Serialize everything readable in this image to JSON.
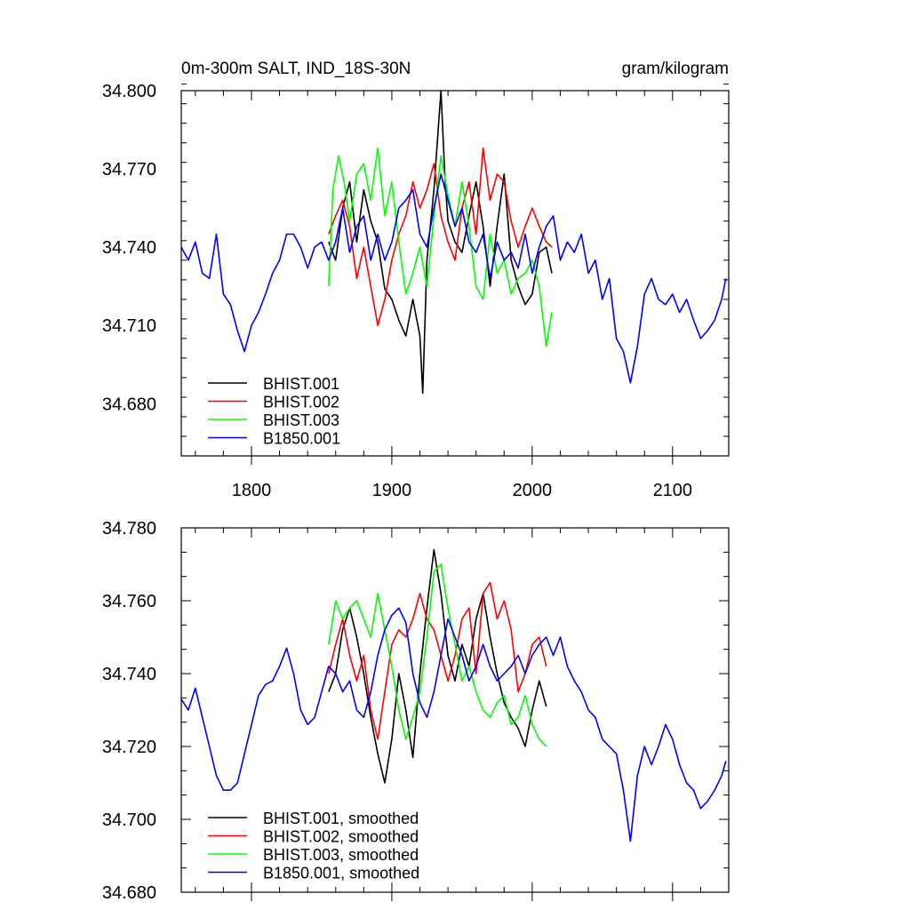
{
  "chart_data": [
    {
      "type": "line",
      "title": "0m-300m SALT, IND_18S-30N",
      "units": "gram/kilogram",
      "xlim": [
        1750,
        2140
      ],
      "ylim": [
        34.66,
        34.8
      ],
      "x_ticks": [
        1800,
        1900,
        2000,
        2100
      ],
      "x_tick_labels": [
        "1800",
        "1900",
        "2000",
        "2100"
      ],
      "y_ticks": [
        34.68,
        34.71,
        34.74,
        34.77,
        34.8
      ],
      "y_tick_labels": [
        "34.680",
        "34.710",
        "34.740",
        "34.770",
        "34.800"
      ],
      "legend_position": "bottom-left",
      "series": [
        {
          "name": "BHIST.001",
          "color": "#000000",
          "x": [
            1855,
            1860,
            1865,
            1870,
            1875,
            1880,
            1885,
            1890,
            1895,
            1900,
            1905,
            1910,
            1915,
            1920,
            1922,
            1925,
            1930,
            1935,
            1938,
            1940,
            1945,
            1950,
            1955,
            1960,
            1965,
            1970,
            1975,
            1980,
            1985,
            1990,
            1995,
            2000,
            2005,
            2010,
            2014
          ],
          "y": [
            34.742,
            34.735,
            34.755,
            34.765,
            34.742,
            34.762,
            34.75,
            34.742,
            34.724,
            34.72,
            34.712,
            34.706,
            34.72,
            34.706,
            34.684,
            34.735,
            34.762,
            34.8,
            34.765,
            34.75,
            34.742,
            34.738,
            34.752,
            34.765,
            34.748,
            34.725,
            34.748,
            34.768,
            34.735,
            34.725,
            34.718,
            34.722,
            34.738,
            34.74,
            34.73
          ]
        },
        {
          "name": "BHIST.002",
          "color": "#ff0000",
          "x": [
            1855,
            1860,
            1865,
            1870,
            1875,
            1880,
            1885,
            1890,
            1895,
            1900,
            1905,
            1910,
            1915,
            1920,
            1925,
            1930,
            1935,
            1940,
            1945,
            1950,
            1955,
            1960,
            1965,
            1970,
            1975,
            1980,
            1985,
            1990,
            1995,
            2000,
            2005,
            2010,
            2014
          ],
          "y": [
            34.745,
            34.752,
            34.758,
            34.748,
            34.728,
            34.74,
            34.725,
            34.71,
            34.72,
            34.735,
            34.745,
            34.752,
            34.765,
            34.755,
            34.762,
            34.772,
            34.752,
            34.742,
            34.735,
            34.755,
            34.765,
            34.745,
            34.778,
            34.758,
            34.768,
            34.765,
            34.75,
            34.74,
            34.748,
            34.755,
            34.748,
            34.742,
            34.74
          ]
        },
        {
          "name": "BHIST.003",
          "color": "#00ff00",
          "x": [
            1855,
            1858,
            1862,
            1866,
            1870,
            1875,
            1880,
            1885,
            1890,
            1895,
            1900,
            1905,
            1910,
            1915,
            1920,
            1925,
            1930,
            1935,
            1940,
            1945,
            1950,
            1955,
            1960,
            1965,
            1970,
            1975,
            1980,
            1985,
            1990,
            1995,
            2000,
            2005,
            2010,
            2014
          ],
          "y": [
            34.725,
            34.762,
            34.775,
            34.765,
            34.75,
            34.768,
            34.772,
            34.758,
            34.778,
            34.752,
            34.765,
            34.742,
            34.722,
            34.73,
            34.74,
            34.725,
            34.752,
            34.775,
            34.76,
            34.748,
            34.765,
            34.748,
            34.725,
            34.72,
            34.745,
            34.73,
            34.735,
            34.722,
            34.728,
            34.73,
            34.735,
            34.725,
            34.702,
            34.715
          ]
        },
        {
          "name": "B1850.001",
          "color": "#0000ff",
          "x": [
            1750,
            1755,
            1760,
            1765,
            1770,
            1775,
            1780,
            1785,
            1790,
            1795,
            1800,
            1805,
            1810,
            1815,
            1820,
            1825,
            1830,
            1835,
            1840,
            1845,
            1850,
            1855,
            1860,
            1865,
            1870,
            1875,
            1880,
            1885,
            1890,
            1895,
            1900,
            1905,
            1910,
            1915,
            1920,
            1925,
            1930,
            1935,
            1940,
            1945,
            1950,
            1955,
            1960,
            1965,
            1970,
            1975,
            1980,
            1985,
            1990,
            1995,
            2000,
            2005,
            2010,
            2015,
            2020,
            2025,
            2030,
            2035,
            2040,
            2045,
            2050,
            2055,
            2060,
            2065,
            2070,
            2075,
            2080,
            2085,
            2090,
            2095,
            2100,
            2105,
            2110,
            2115,
            2120,
            2125,
            2130,
            2135,
            2138
          ],
          "y": [
            34.74,
            34.735,
            34.742,
            34.73,
            34.728,
            34.745,
            34.722,
            34.718,
            34.708,
            34.7,
            34.71,
            34.715,
            34.722,
            34.73,
            34.735,
            34.745,
            34.745,
            34.74,
            34.732,
            34.74,
            34.742,
            34.735,
            34.742,
            34.755,
            34.738,
            34.748,
            34.752,
            34.735,
            34.745,
            34.735,
            34.742,
            34.755,
            34.758,
            34.762,
            34.745,
            34.74,
            34.755,
            34.768,
            34.758,
            34.748,
            34.755,
            34.742,
            34.738,
            34.745,
            34.728,
            34.742,
            34.735,
            34.738,
            34.732,
            34.745,
            34.73,
            34.74,
            34.748,
            34.752,
            34.735,
            34.742,
            34.738,
            34.745,
            34.73,
            34.735,
            34.72,
            34.728,
            34.705,
            34.7,
            34.688,
            34.702,
            34.722,
            34.728,
            34.72,
            34.718,
            34.722,
            34.715,
            34.72,
            34.712,
            34.705,
            34.708,
            34.712,
            34.72,
            34.728
          ]
        }
      ]
    },
    {
      "type": "line",
      "title": "",
      "xlim": [
        1750,
        2140
      ],
      "ylim": [
        34.68,
        34.78
      ],
      "x_ticks": [
        1800,
        1900,
        2000,
        2100
      ],
      "x_tick_labels": [
        "",
        "",
        "",
        ""
      ],
      "y_ticks": [
        34.68,
        34.7,
        34.72,
        34.74,
        34.76,
        34.78
      ],
      "y_tick_labels": [
        "34.680",
        "34.700",
        "34.720",
        "34.740",
        "34.760",
        "34.780"
      ],
      "legend_position": "bottom-left",
      "series": [
        {
          "name": "BHIST.001, smoothed",
          "color": "#000000",
          "x": [
            1855,
            1860,
            1865,
            1870,
            1875,
            1880,
            1885,
            1890,
            1895,
            1900,
            1905,
            1910,
            1915,
            1920,
            1925,
            1930,
            1935,
            1940,
            1945,
            1950,
            1955,
            1960,
            1965,
            1970,
            1975,
            1980,
            1985,
            1990,
            1995,
            2000,
            2005,
            2010
          ],
          "y": [
            34.735,
            34.74,
            34.752,
            34.758,
            34.75,
            34.74,
            34.728,
            34.718,
            34.71,
            34.722,
            34.74,
            34.73,
            34.717,
            34.74,
            34.758,
            34.774,
            34.762,
            34.745,
            34.738,
            34.748,
            34.742,
            34.755,
            34.762,
            34.75,
            34.74,
            34.732,
            34.728,
            34.725,
            34.72,
            34.73,
            34.738,
            34.731
          ]
        },
        {
          "name": "BHIST.002, smoothed",
          "color": "#ff0000",
          "x": [
            1855,
            1860,
            1865,
            1870,
            1875,
            1880,
            1885,
            1890,
            1895,
            1900,
            1905,
            1910,
            1915,
            1920,
            1925,
            1930,
            1935,
            1940,
            1945,
            1950,
            1955,
            1960,
            1965,
            1970,
            1975,
            1980,
            1985,
            1990,
            1995,
            2000,
            2005,
            2010
          ],
          "y": [
            34.74,
            34.748,
            34.755,
            34.745,
            34.738,
            34.745,
            34.73,
            34.722,
            34.735,
            34.748,
            34.752,
            34.75,
            34.755,
            34.762,
            34.755,
            34.752,
            34.745,
            34.738,
            34.745,
            34.755,
            34.758,
            34.74,
            34.762,
            34.765,
            34.755,
            34.76,
            34.752,
            34.735,
            34.74,
            34.748,
            34.75,
            34.742
          ]
        },
        {
          "name": "BHIST.003, smoothed",
          "color": "#00ff00",
          "x": [
            1855,
            1860,
            1865,
            1870,
            1875,
            1880,
            1885,
            1890,
            1895,
            1900,
            1905,
            1910,
            1915,
            1920,
            1925,
            1930,
            1935,
            1940,
            1945,
            1950,
            1955,
            1960,
            1965,
            1970,
            1975,
            1980,
            1985,
            1990,
            1995,
            2000,
            2005,
            2010
          ],
          "y": [
            34.748,
            34.76,
            34.755,
            34.758,
            34.76,
            34.755,
            34.75,
            34.762,
            34.752,
            34.742,
            34.73,
            34.722,
            34.728,
            34.735,
            34.75,
            34.768,
            34.77,
            34.758,
            34.748,
            34.738,
            34.742,
            34.735,
            34.73,
            34.728,
            34.732,
            34.734,
            34.726,
            34.728,
            34.734,
            34.726,
            34.722,
            34.72
          ]
        },
        {
          "name": "B1850.001, smoothed",
          "color": "#0000ff",
          "x": [
            1750,
            1755,
            1760,
            1765,
            1770,
            1775,
            1780,
            1785,
            1790,
            1795,
            1800,
            1805,
            1810,
            1815,
            1820,
            1825,
            1830,
            1835,
            1840,
            1845,
            1850,
            1855,
            1860,
            1865,
            1870,
            1875,
            1880,
            1885,
            1890,
            1895,
            1900,
            1905,
            1910,
            1915,
            1920,
            1925,
            1930,
            1935,
            1940,
            1945,
            1950,
            1955,
            1960,
            1965,
            1970,
            1975,
            1980,
            1985,
            1990,
            1995,
            2000,
            2005,
            2010,
            2015,
            2020,
            2025,
            2030,
            2035,
            2040,
            2045,
            2050,
            2055,
            2060,
            2065,
            2070,
            2075,
            2080,
            2085,
            2090,
            2095,
            2100,
            2105,
            2110,
            2115,
            2120,
            2125,
            2130,
            2135,
            2138
          ],
          "y": [
            34.733,
            34.73,
            34.736,
            34.728,
            34.72,
            34.712,
            34.708,
            34.708,
            34.71,
            34.718,
            34.726,
            34.734,
            34.737,
            34.738,
            34.742,
            34.747,
            34.74,
            34.73,
            34.726,
            34.728,
            34.735,
            34.742,
            34.74,
            34.735,
            34.738,
            34.73,
            34.728,
            34.735,
            34.745,
            34.752,
            34.756,
            34.758,
            34.754,
            34.74,
            34.732,
            34.728,
            34.735,
            34.745,
            34.755,
            34.75,
            34.745,
            34.738,
            34.742,
            34.748,
            34.742,
            34.738,
            34.74,
            34.742,
            34.745,
            34.74,
            34.745,
            34.748,
            34.75,
            34.745,
            34.75,
            34.742,
            34.738,
            34.735,
            34.73,
            34.728,
            34.722,
            34.72,
            34.718,
            34.708,
            34.694,
            34.712,
            34.72,
            34.715,
            34.72,
            34.726,
            34.722,
            34.715,
            34.71,
            34.708,
            34.703,
            34.705,
            34.708,
            34.712,
            34.716
          ]
        }
      ]
    }
  ]
}
